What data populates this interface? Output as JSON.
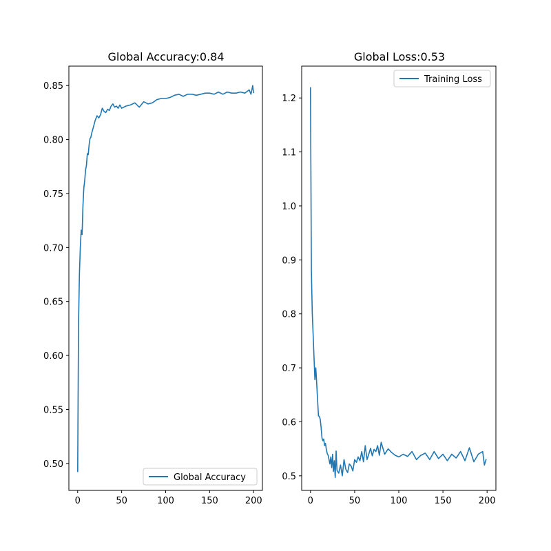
{
  "chart_data": [
    {
      "type": "line",
      "title": "Global Accuracy:0.84",
      "xlim": [
        -10,
        210
      ],
      "ylim": [
        0.475,
        0.868
      ],
      "xticks": [
        0,
        50,
        100,
        150,
        200
      ],
      "yticks": [
        0.5,
        0.55,
        0.6,
        0.65,
        0.7,
        0.75,
        0.8,
        0.85
      ],
      "legend_position": "lower-right",
      "series": [
        {
          "name": "Global Accuracy",
          "color": "#1f77b4",
          "x": [
            0,
            1,
            2,
            3,
            4,
            5,
            6,
            7,
            8,
            9,
            10,
            11,
            12,
            13,
            14,
            15,
            16,
            18,
            20,
            22,
            24,
            26,
            28,
            30,
            32,
            34,
            36,
            38,
            40,
            42,
            44,
            46,
            48,
            50,
            55,
            60,
            65,
            70,
            75,
            80,
            85,
            90,
            95,
            100,
            105,
            110,
            115,
            120,
            125,
            130,
            135,
            140,
            145,
            150,
            155,
            160,
            165,
            170,
            175,
            180,
            185,
            190,
            195,
            197,
            199,
            200
          ],
          "values": [
            0.492,
            0.628,
            0.675,
            0.7,
            0.716,
            0.712,
            0.738,
            0.755,
            0.762,
            0.772,
            0.776,
            0.787,
            0.786,
            0.795,
            0.801,
            0.802,
            0.806,
            0.812,
            0.818,
            0.822,
            0.82,
            0.823,
            0.829,
            0.826,
            0.825,
            0.828,
            0.827,
            0.831,
            0.833,
            0.83,
            0.831,
            0.829,
            0.832,
            0.829,
            0.831,
            0.832,
            0.834,
            0.83,
            0.835,
            0.833,
            0.834,
            0.837,
            0.838,
            0.838,
            0.839,
            0.841,
            0.842,
            0.84,
            0.842,
            0.842,
            0.841,
            0.842,
            0.843,
            0.843,
            0.842,
            0.844,
            0.842,
            0.844,
            0.843,
            0.843,
            0.844,
            0.843,
            0.846,
            0.842,
            0.85,
            0.843
          ]
        }
      ]
    },
    {
      "type": "line",
      "title": "Global Loss:0.53",
      "xlim": [
        -10,
        210
      ],
      "ylim": [
        0.473,
        1.259
      ],
      "xticks": [
        0,
        50,
        100,
        150,
        200
      ],
      "yticks": [
        0.5,
        0.6,
        0.7,
        0.8,
        0.9,
        1.0,
        1.1,
        1.2
      ],
      "legend_position": "upper-right",
      "series": [
        {
          "name": "Training Loss",
          "color": "#1f77b4",
          "x": [
            0,
            1,
            2,
            3,
            4,
            5,
            6,
            7,
            8,
            9,
            10,
            11,
            12,
            13,
            14,
            15,
            16,
            17,
            18,
            19,
            20,
            21,
            22,
            23,
            24,
            25,
            26,
            27,
            28,
            29,
            30,
            32,
            34,
            36,
            38,
            40,
            42,
            44,
            46,
            48,
            50,
            52,
            54,
            56,
            58,
            60,
            62,
            64,
            66,
            68,
            70,
            72,
            74,
            76,
            78,
            80,
            84,
            88,
            92,
            96,
            100,
            105,
            110,
            115,
            120,
            125,
            130,
            135,
            140,
            145,
            150,
            155,
            160,
            165,
            170,
            175,
            180,
            185,
            190,
            195,
            197,
            199
          ],
          "values": [
            1.22,
            0.88,
            0.8,
            0.76,
            0.72,
            0.678,
            0.7,
            0.672,
            0.64,
            0.611,
            0.61,
            0.605,
            0.59,
            0.57,
            0.565,
            0.568,
            0.556,
            0.56,
            0.548,
            0.541,
            0.538,
            0.53,
            0.522,
            0.535,
            0.515,
            0.54,
            0.508,
            0.528,
            0.497,
            0.546,
            0.51,
            0.505,
            0.52,
            0.5,
            0.53,
            0.512,
            0.506,
            0.522,
            0.518,
            0.509,
            0.53,
            0.525,
            0.535,
            0.528,
            0.545,
            0.526,
            0.556,
            0.53,
            0.54,
            0.551,
            0.537,
            0.549,
            0.545,
            0.556,
            0.538,
            0.562,
            0.54,
            0.55,
            0.543,
            0.538,
            0.535,
            0.54,
            0.536,
            0.545,
            0.53,
            0.538,
            0.542,
            0.53,
            0.545,
            0.532,
            0.54,
            0.528,
            0.54,
            0.533,
            0.545,
            0.528,
            0.552,
            0.526,
            0.54,
            0.545,
            0.52,
            0.531
          ]
        }
      ]
    }
  ]
}
